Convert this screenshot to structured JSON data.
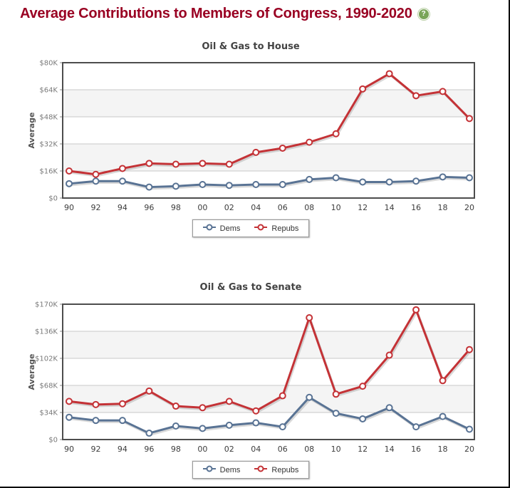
{
  "page": {
    "title": "Average Contributions to Members of Congress, 1990-2020",
    "title_color": "#990022",
    "help_icon": {
      "name": "help-question-icon",
      "glyph": "?",
      "color": "#79a558"
    }
  },
  "legend": {
    "items": [
      {
        "label": "Dems",
        "color": "#597394"
      },
      {
        "label": "Repubs",
        "color": "#c43236"
      }
    ]
  },
  "chart_data": [
    {
      "type": "line",
      "title": "Oil & Gas to House",
      "xlabel": "",
      "ylabel": "Average",
      "ylim": [
        0,
        80000
      ],
      "grid": "horizontal-bands-alternating",
      "legend_position": "bottom-center",
      "band_color": "#f4f4f4",
      "x_tick_labels": [
        "90",
        "92",
        "94",
        "96",
        "98",
        "00",
        "02",
        "04",
        "06",
        "08",
        "10",
        "12",
        "14",
        "16",
        "18",
        "20"
      ],
      "y_tick_labels": [
        "$80K",
        "$64K",
        "$48K",
        "$32K",
        "$16K",
        "$0"
      ],
      "categories": [
        1990,
        1992,
        1994,
        1996,
        1998,
        2000,
        2002,
        2004,
        2006,
        2008,
        2010,
        2012,
        2014,
        2016,
        2018,
        2020
      ],
      "series": [
        {
          "name": "Dems",
          "color": "#597394",
          "values": [
            8500,
            10000,
            10000,
            6500,
            7000,
            8000,
            7500,
            8000,
            8000,
            11000,
            12000,
            9500,
            9500,
            10000,
            12500,
            12000
          ]
        },
        {
          "name": "Repubs",
          "color": "#c43236",
          "values": [
            16000,
            14000,
            17500,
            20500,
            20000,
            20500,
            20000,
            27000,
            29500,
            33000,
            38000,
            64500,
            73500,
            60500,
            63000,
            47000
          ]
        }
      ]
    },
    {
      "type": "line",
      "title": "Oil & Gas to Senate",
      "xlabel": "",
      "ylabel": "Average",
      "ylim": [
        0,
        170000
      ],
      "grid": "horizontal-bands-alternating",
      "legend_position": "bottom-center",
      "band_color": "#f4f4f4",
      "x_tick_labels": [
        "90",
        "92",
        "94",
        "96",
        "98",
        "00",
        "02",
        "04",
        "06",
        "08",
        "10",
        "12",
        "14",
        "16",
        "18",
        "20"
      ],
      "y_tick_labels": [
        "$170K",
        "$136K",
        "$102K",
        "$68K",
        "$34K",
        "$0"
      ],
      "categories": [
        1990,
        1992,
        1994,
        1996,
        1998,
        2000,
        2002,
        2004,
        2006,
        2008,
        2010,
        2012,
        2014,
        2016,
        2018,
        2020
      ],
      "series": [
        {
          "name": "Dems",
          "color": "#597394",
          "values": [
            28000,
            24000,
            24000,
            8000,
            17000,
            14000,
            18000,
            21000,
            16000,
            53000,
            33000,
            26000,
            40000,
            16000,
            29000,
            13000
          ]
        },
        {
          "name": "Repubs",
          "color": "#c43236",
          "values": [
            48000,
            44000,
            45000,
            61000,
            42000,
            40000,
            48000,
            36000,
            55000,
            153000,
            57000,
            67000,
            106000,
            163000,
            74000,
            113000
          ]
        }
      ]
    }
  ]
}
